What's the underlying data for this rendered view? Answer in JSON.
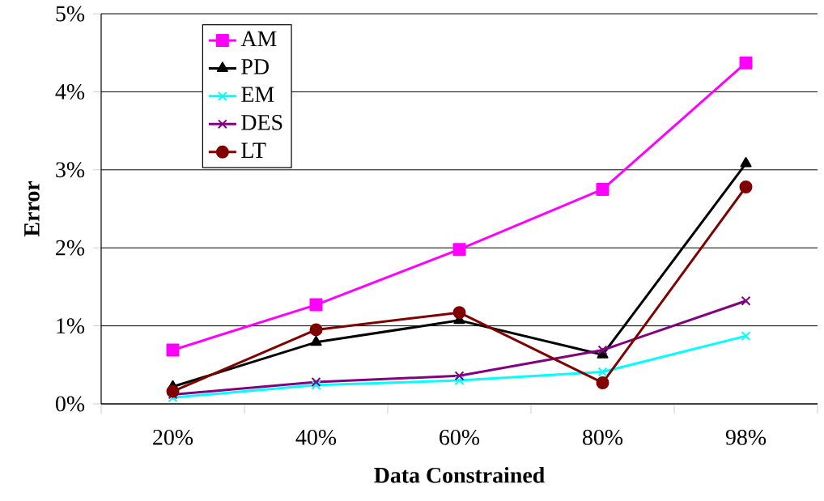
{
  "chart_data": {
    "type": "line",
    "xlabel": "Data Constrained",
    "ylabel": "Error",
    "categories": [
      "20%",
      "40%",
      "60%",
      "80%",
      "98%"
    ],
    "ylim": [
      0,
      5
    ],
    "yticks": [
      {
        "value": 0,
        "label": "0%"
      },
      {
        "value": 1,
        "label": "1%"
      },
      {
        "value": 2,
        "label": "2%"
      },
      {
        "value": 3,
        "label": "3%"
      },
      {
        "value": 4,
        "label": "4%"
      },
      {
        "value": 5,
        "label": "5%"
      }
    ],
    "grid": "y",
    "legend": "top left",
    "line_style": "solid",
    "series": [
      {
        "name": "AM",
        "color": "#ff00ff",
        "marker": "square",
        "values": [
          0.69,
          1.27,
          1.98,
          2.75,
          4.37
        ]
      },
      {
        "name": "PD",
        "color": "#000000",
        "marker": "triangle",
        "values": [
          0.22,
          0.79,
          1.07,
          0.63,
          3.08
        ]
      },
      {
        "name": "EM",
        "color": "#00ffff",
        "marker": "cross",
        "values": [
          0.08,
          0.24,
          0.3,
          0.41,
          0.87
        ]
      },
      {
        "name": "DES",
        "color": "#800080",
        "marker": "cross",
        "values": [
          0.12,
          0.28,
          0.36,
          0.69,
          1.32
        ]
      },
      {
        "name": "LT",
        "color": "#800000",
        "marker": "circle",
        "values": [
          0.16,
          0.95,
          1.17,
          0.27,
          2.78
        ]
      }
    ]
  }
}
